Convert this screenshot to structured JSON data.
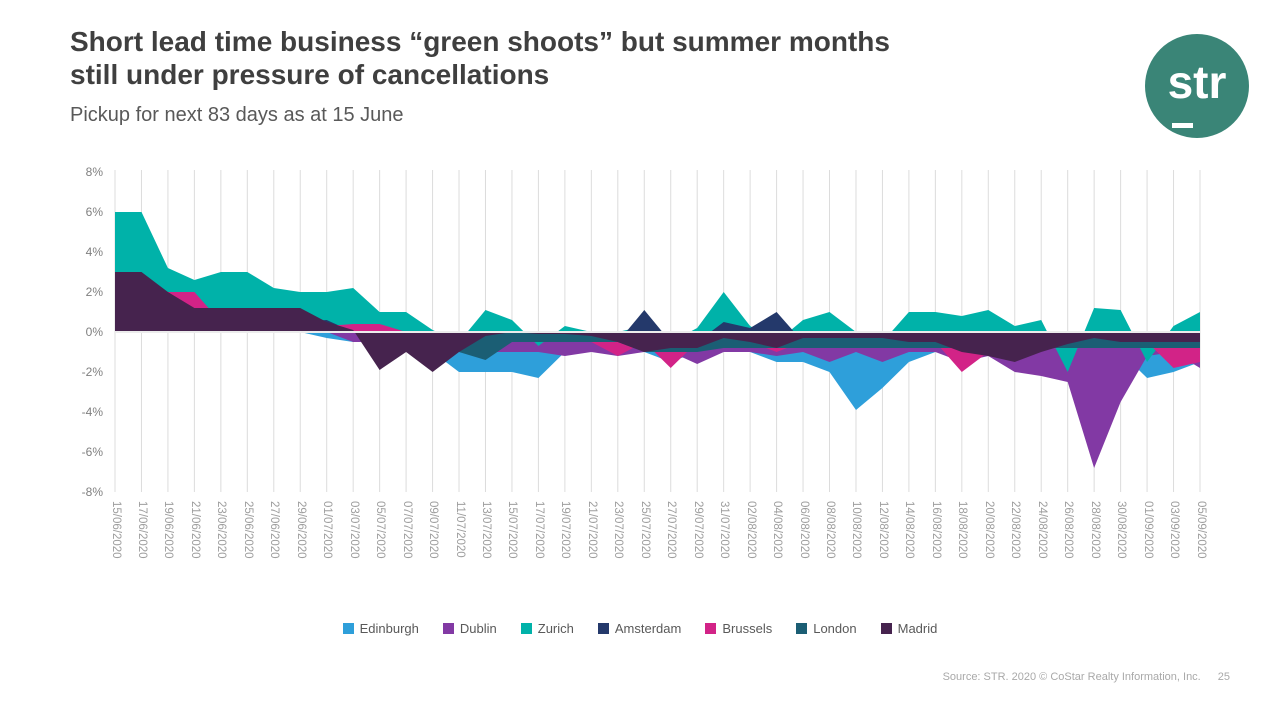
{
  "slide": {
    "title_line1": "Short lead time business “green shoots” but summer months",
    "title_line2": "still under pressure of cancellations",
    "subtitle": "Pickup for next 83 days as at 15 June",
    "logo_text": "str",
    "brand_color": "#3a8577",
    "footer": {
      "source": "Source: STR. 2020 © CoStar Realty Information, Inc.",
      "page": "25"
    }
  },
  "chart_data": {
    "type": "area",
    "mode": "overlap",
    "title": "",
    "xlabel": "",
    "ylabel": "",
    "ylim": [
      -8,
      8
    ],
    "y_tick_step": 2,
    "y_tick_suffix": "%",
    "grid": "vertical",
    "grid_color": "#dcdcdc",
    "zero_line_color": "#ececec",
    "legend_position": "bottom",
    "x": [
      "15/06/2020",
      "17/06/2020",
      "19/06/2020",
      "21/06/2020",
      "23/06/2020",
      "25/06/2020",
      "27/06/2020",
      "29/06/2020",
      "01/07/2020",
      "03/07/2020",
      "05/07/2020",
      "07/07/2020",
      "09/07/2020",
      "11/07/2020",
      "13/07/2020",
      "15/07/2020",
      "17/07/2020",
      "19/07/2020",
      "21/07/2020",
      "23/07/2020",
      "25/07/2020",
      "27/07/2020",
      "29/07/2020",
      "31/07/2020",
      "02/08/2020",
      "04/08/2020",
      "06/08/2020",
      "08/08/2020",
      "10/08/2020",
      "12/08/2020",
      "14/08/2020",
      "16/08/2020",
      "18/08/2020",
      "20/08/2020",
      "22/08/2020",
      "24/08/2020",
      "26/08/2020",
      "28/08/2020",
      "30/08/2020",
      "01/09/2020",
      "03/09/2020",
      "05/09/2020"
    ],
    "series": [
      {
        "name": "Edinburgh",
        "color": "#2e9fda",
        "values": [
          0,
          0,
          0,
          0,
          0,
          0,
          0,
          0,
          -0.3,
          -0.5,
          -0.5,
          -1,
          -1,
          -2,
          -2,
          -2,
          -2.3,
          -1,
          -1,
          -1,
          -1,
          -1.5,
          -1,
          -1,
          -1,
          -1.5,
          -1.5,
          -2,
          -3.9,
          -2.8,
          -1.5,
          -1,
          -1.2,
          -1,
          -1,
          -1.5,
          -1,
          -1,
          -1,
          -2.3,
          -2,
          -1.5
        ]
      },
      {
        "name": "Dublin",
        "color": "#8239a4",
        "values": [
          0,
          0,
          0,
          0,
          0,
          0,
          0,
          0,
          0,
          -0.5,
          -0.5,
          -0.5,
          -1,
          -1,
          -1,
          -1,
          -1,
          -1.2,
          -1,
          -1.2,
          -1,
          -1,
          -1.6,
          -1,
          -1,
          -1.2,
          -1,
          -1.5,
          -1,
          -1.5,
          -1,
          -1,
          -1.5,
          -1.2,
          -2,
          -2.2,
          -2.5,
          -6.8,
          -3.5,
          -1.2,
          -1,
          -1.8
        ]
      },
      {
        "name": "Zurich",
        "color": "#00b2a9",
        "values": [
          6,
          6,
          3.2,
          2.6,
          3,
          3,
          2.2,
          2,
          2,
          2.2,
          1,
          1,
          0.1,
          -0.5,
          1.1,
          0.6,
          -0.7,
          0.3,
          0,
          0,
          0.3,
          -0.5,
          0.2,
          2,
          0.3,
          -0.5,
          0.6,
          1,
          0,
          -0.5,
          1,
          1,
          0.8,
          1.1,
          0.3,
          0.6,
          -2,
          1.2,
          1.1,
          -1.5,
          0.3,
          1
        ]
      },
      {
        "name": "Amsterdam",
        "color": "#24396b",
        "values": [
          0,
          0,
          0,
          0,
          0,
          0,
          0,
          0.5,
          0.6,
          0,
          0,
          0,
          0,
          -0.5,
          -0.5,
          -0.5,
          -0.5,
          -0.5,
          -0.5,
          -0.5,
          1.1,
          -0.5,
          -0.5,
          0.5,
          0.2,
          1,
          -0.5,
          -0.5,
          -0.5,
          -0.5,
          -0.5,
          -0.5,
          -0.5,
          -0.5,
          -0.5,
          -0.5,
          -0.5,
          -0.5,
          -0.5,
          -0.5,
          -0.5,
          -0.5
        ]
      },
      {
        "name": "Brussels",
        "color": "#d22387",
        "values": [
          0,
          0,
          2,
          2,
          0.5,
          0,
          0,
          0,
          0.3,
          0.4,
          0.4,
          0,
          0,
          0,
          0,
          0,
          0,
          -0.5,
          -0.5,
          -1.2,
          -0.5,
          -1.8,
          -0.5,
          0,
          -0.5,
          -1,
          -0.5,
          0,
          0,
          0,
          -0.5,
          -0.5,
          -2,
          -1,
          -0.5,
          -0.5,
          -0.5,
          -0.5,
          -0.5,
          -0.5,
          -1.8,
          -1.5
        ]
      },
      {
        "name": "London",
        "color": "#1b5e74",
        "values": [
          0,
          0,
          0,
          0,
          0,
          0,
          0,
          0,
          0,
          0,
          0,
          -0.5,
          -0.5,
          -1,
          -1.4,
          -0.5,
          -0.5,
          -0.5,
          -0.5,
          -0.5,
          -1,
          -1,
          -1,
          -0.8,
          -0.8,
          -0.8,
          -0.8,
          -0.8,
          -0.8,
          -0.8,
          -0.8,
          -0.8,
          -0.8,
          -0.8,
          -0.8,
          -0.8,
          -0.8,
          -0.8,
          -0.8,
          -0.8,
          -0.8,
          -0.8
        ]
      },
      {
        "name": "Madrid",
        "color": "#46234e",
        "values": [
          3,
          3,
          2,
          1.2,
          1.2,
          1.2,
          1.2,
          1.2,
          0.5,
          0.1,
          -1.9,
          -1,
          -2,
          -1,
          -0.2,
          0,
          -0.1,
          -0.1,
          -0.2,
          -0.5,
          -1,
          -0.8,
          -0.8,
          -0.3,
          -0.5,
          -0.8,
          -0.3,
          -0.3,
          -0.3,
          -0.3,
          -0.5,
          -0.5,
          -1,
          -1.2,
          -1.5,
          -1,
          -0.6,
          -0.3,
          -0.5,
          -0.5,
          -0.5,
          -0.5
        ]
      }
    ]
  }
}
